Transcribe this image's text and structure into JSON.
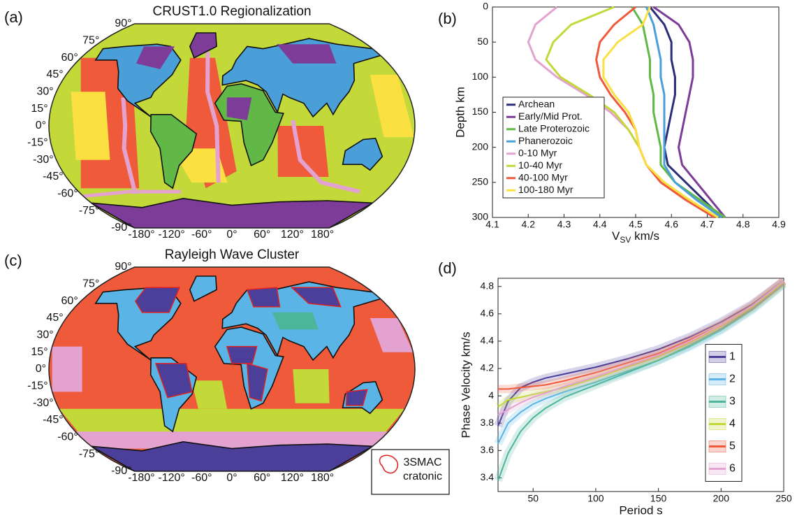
{
  "chart_data": [
    {
      "type": "map",
      "panel": "(a)",
      "title": "CRUST1.0 Regionalization",
      "lat_labels": [
        "90°",
        "75°",
        "60°",
        "45°",
        "30°",
        "15°",
        "0°",
        "-15°",
        "-30°",
        "-45°",
        "-60°",
        "-75°",
        "-90°"
      ],
      "lon_labels": [
        "-180°",
        "-120°",
        "-60°",
        "0°",
        "60°",
        "120°",
        "180°"
      ]
    },
    {
      "type": "line",
      "panel": "(b)",
      "xlabel": [
        "V",
        "SV",
        " km/s"
      ],
      "ylabel": "Depth km",
      "xlim": [
        4.1,
        4.9
      ],
      "xticks": [
        4.1,
        4.2,
        4.3,
        4.4,
        4.5,
        4.6,
        4.7,
        4.8,
        4.9
      ],
      "ylim": [
        0,
        300
      ],
      "yticks": [
        0,
        50,
        100,
        150,
        200,
        250,
        300
      ],
      "y_inverted": true,
      "legend": "lower left",
      "y": [
        0,
        25,
        50,
        75,
        100,
        125,
        150,
        175,
        200,
        225,
        250,
        275,
        300
      ],
      "series": [
        {
          "name": "Archean",
          "color": "#2b2d78",
          "values": [
            4.54,
            4.58,
            4.6,
            4.6,
            4.61,
            4.61,
            4.6,
            4.59,
            4.58,
            4.59,
            4.64,
            4.69,
            4.74
          ]
        },
        {
          "name": "Early/Mid Prot.",
          "color": "#7d3c98",
          "values": [
            4.55,
            4.62,
            4.65,
            4.66,
            4.66,
            4.65,
            4.64,
            4.63,
            4.62,
            4.63,
            4.67,
            4.71,
            4.75
          ]
        },
        {
          "name": "Late Proterozoic",
          "color": "#62b847",
          "values": [
            4.49,
            4.52,
            4.53,
            4.54,
            4.54,
            4.55,
            4.55,
            4.56,
            4.57,
            4.57,
            4.61,
            4.68,
            4.75
          ]
        },
        {
          "name": "Phanerozoic",
          "color": "#4a9fd8",
          "values": [
            4.53,
            4.55,
            4.56,
            4.57,
            4.57,
            4.58,
            4.58,
            4.58,
            4.58,
            4.58,
            4.61,
            4.67,
            4.74
          ]
        },
        {
          "name": "0-10 Myr",
          "color": "#e3a2cf",
          "values": [
            4.28,
            4.22,
            4.2,
            4.22,
            4.28,
            4.36,
            4.43,
            4.48,
            4.51,
            4.53,
            4.57,
            4.64,
            4.72
          ]
        },
        {
          "name": "10-40 Myr",
          "color": "#c3d93a",
          "values": [
            4.44,
            4.32,
            4.27,
            4.25,
            4.29,
            4.37,
            4.44,
            4.48,
            4.51,
            4.53,
            4.58,
            4.65,
            4.73
          ]
        },
        {
          "name": "40-100 Myr",
          "color": "#ee5a3a",
          "values": [
            4.5,
            4.44,
            4.4,
            4.39,
            4.4,
            4.43,
            4.47,
            4.5,
            4.51,
            4.53,
            4.57,
            4.64,
            4.72
          ]
        },
        {
          "name": "100-180 Myr",
          "color": "#fbe042",
          "values": [
            4.54,
            4.52,
            4.45,
            4.41,
            4.41,
            4.44,
            4.48,
            4.5,
            4.51,
            4.53,
            4.58,
            4.65,
            4.73
          ]
        }
      ]
    },
    {
      "type": "map",
      "panel": "(c)",
      "title": "Rayleigh Wave Cluster",
      "lat_labels": [
        "90°",
        "75°",
        "60°",
        "45°",
        "30°",
        "15°",
        "0°",
        "-15°",
        "-30°",
        "-45°",
        "-60°",
        "-75°",
        "-90°"
      ],
      "lon_labels": [
        "-180°",
        "-120°",
        "-60°",
        "0°",
        "60°",
        "120°",
        "180°"
      ],
      "legend": [
        "3SMAC",
        "cratonic"
      ]
    },
    {
      "type": "line",
      "panel": "(d)",
      "xlabel": "Period s",
      "ylabel": "Phase Velocity km/s",
      "xlim": [
        22,
        250
      ],
      "xticks": [
        50,
        100,
        150,
        200,
        250
      ],
      "ylim": [
        3.3,
        4.86
      ],
      "yticks": [
        3.4,
        3.6,
        3.8,
        4,
        4.2,
        4.4,
        4.6,
        4.8
      ],
      "legend": "center right",
      "x": [
        22,
        30,
        40,
        50,
        60,
        75,
        100,
        125,
        150,
        175,
        200,
        225,
        250
      ],
      "series": [
        {
          "name": "1",
          "color": "#4b3f9a",
          "values": [
            3.78,
            3.96,
            4.06,
            4.1,
            4.13,
            4.16,
            4.21,
            4.27,
            4.34,
            4.43,
            4.54,
            4.67,
            4.84
          ]
        },
        {
          "name": "2",
          "color": "#5ab4e5",
          "values": [
            3.65,
            3.8,
            3.88,
            3.94,
            3.98,
            4.03,
            4.1,
            4.18,
            4.26,
            4.36,
            4.48,
            4.63,
            4.82
          ]
        },
        {
          "name": "3",
          "color": "#4cb59a",
          "values": [
            3.38,
            3.58,
            3.74,
            3.84,
            3.91,
            3.99,
            4.08,
            4.17,
            4.26,
            4.37,
            4.49,
            4.64,
            4.82
          ]
        },
        {
          "name": "4",
          "color": "#c3d93a",
          "values": [
            3.92,
            3.97,
            3.99,
            4.01,
            4.03,
            4.06,
            4.13,
            4.21,
            4.29,
            4.39,
            4.51,
            4.65,
            4.83
          ]
        },
        {
          "name": "5",
          "color": "#ee5a3a",
          "values": [
            4.05,
            4.05,
            4.06,
            4.07,
            4.08,
            4.11,
            4.17,
            4.24,
            4.31,
            4.41,
            4.52,
            4.66,
            4.84
          ]
        },
        {
          "name": "6",
          "color": "#e3a2cf",
          "values": [
            3.86,
            3.9,
            3.95,
            3.99,
            4.02,
            4.07,
            4.14,
            4.22,
            4.3,
            4.4,
            4.52,
            4.66,
            4.84
          ]
        }
      ]
    }
  ]
}
